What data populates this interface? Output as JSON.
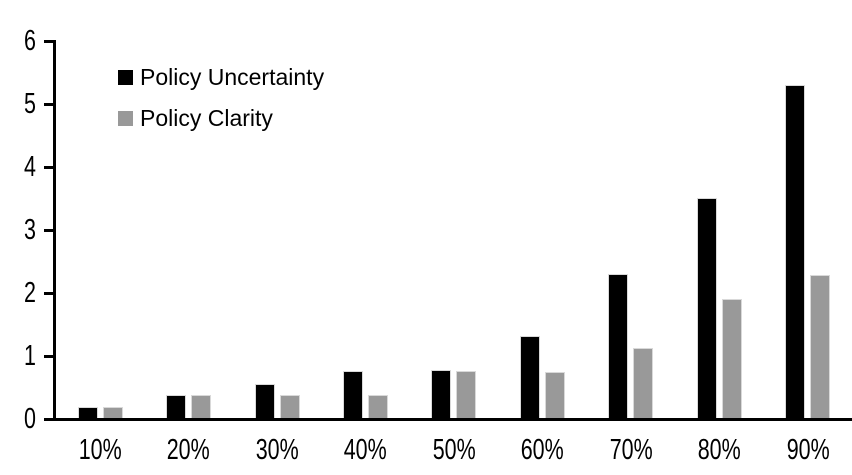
{
  "chart_data": {
    "type": "bar",
    "title": "",
    "xlabel": "",
    "ylabel": "",
    "categories": [
      "10%",
      "20%",
      "30%",
      "40%",
      "50%",
      "60%",
      "70%",
      "80%",
      "90%"
    ],
    "series": [
      {
        "name": "Policy Uncertainty",
        "color": "#000000",
        "values": [
          0.19,
          0.38,
          0.56,
          0.76,
          0.78,
          1.32,
          2.3,
          3.5,
          5.3
        ]
      },
      {
        "name": "Policy Clarity",
        "color": "#999999",
        "values": [
          0.19,
          0.38,
          0.38,
          0.38,
          0.76,
          0.75,
          1.13,
          1.9,
          2.29
        ]
      }
    ],
    "ylim": [
      0,
      6
    ],
    "yticks": [
      0,
      1,
      2,
      3,
      4,
      5,
      6
    ],
    "grid": false,
    "legend_position": "top-left",
    "background_color": "#ffffff",
    "axis_color": "#000000",
    "bar_outline_color": "#d9d9d9"
  }
}
